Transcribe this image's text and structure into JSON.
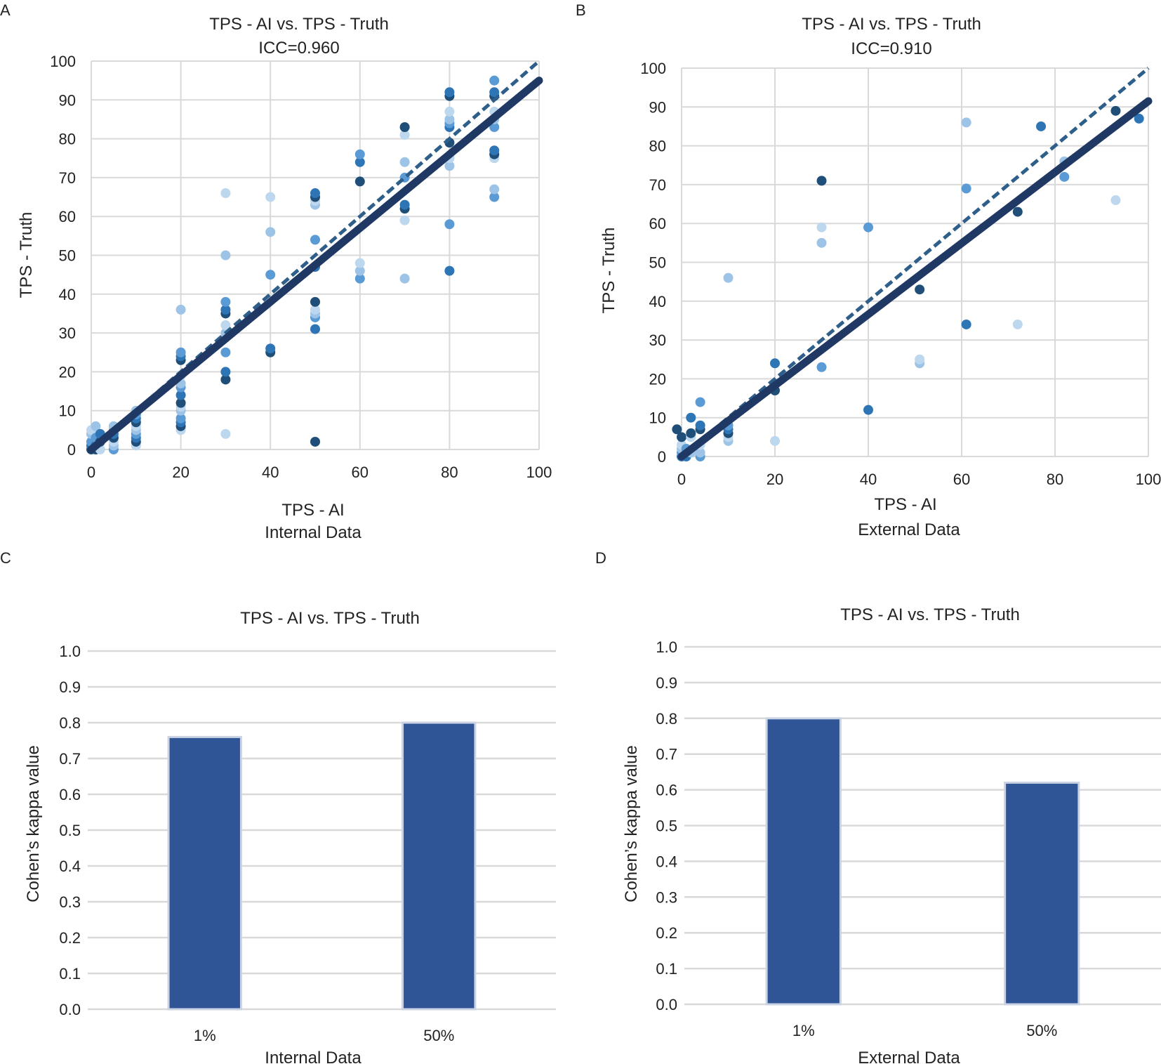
{
  "panel_labels": [
    "A",
    "B",
    "C",
    "D"
  ],
  "colors": {
    "grid": "#d9d9d9",
    "fit_line": "#1f3864",
    "identity_line": "#2e5f8a",
    "bar_fill": "#2f5597",
    "bar_outline": "#c9d3e3",
    "point_shades": [
      "#1f4e79",
      "#2e75b6",
      "#5b9bd5",
      "#9dc3e6",
      "#bdd7ee"
    ]
  },
  "chart_data": [
    {
      "panel": "A",
      "type": "scatter",
      "title": "TPS - AI vs. TPS - Truth",
      "subtitle": "ICC=0.960",
      "xlabel": "TPS - AI",
      "xlabel2": "Internal Data",
      "ylabel": "TPS - Truth",
      "xlim": [
        0,
        100
      ],
      "ylim": [
        0,
        100
      ],
      "xticks": [
        0,
        20,
        40,
        60,
        80,
        100
      ],
      "yticks": [
        0,
        10,
        20,
        30,
        40,
        50,
        60,
        70,
        80,
        90,
        100
      ],
      "grid": true,
      "fit_line": {
        "style": "solid",
        "points": [
          [
            0,
            0
          ],
          [
            100,
            95
          ]
        ]
      },
      "identity_line": {
        "style": "dashed",
        "points": [
          [
            0,
            0
          ],
          [
            100,
            100
          ]
        ]
      },
      "points": [
        [
          0,
          0
        ],
        [
          0,
          1
        ],
        [
          0,
          2
        ],
        [
          0,
          4
        ],
        [
          0,
          5
        ],
        [
          1,
          0
        ],
        [
          1,
          1
        ],
        [
          1,
          3
        ],
        [
          1,
          6
        ],
        [
          2,
          0
        ],
        [
          2,
          2
        ],
        [
          2,
          4
        ],
        [
          5,
          0
        ],
        [
          5,
          1
        ],
        [
          5,
          2
        ],
        [
          5,
          3
        ],
        [
          5,
          4
        ],
        [
          5,
          5
        ],
        [
          5,
          6
        ],
        [
          10,
          1
        ],
        [
          10,
          2
        ],
        [
          10,
          3
        ],
        [
          10,
          4
        ],
        [
          10,
          5
        ],
        [
          10,
          6
        ],
        [
          10,
          7
        ],
        [
          10,
          8
        ],
        [
          10,
          9
        ],
        [
          10,
          10
        ],
        [
          20,
          5
        ],
        [
          20,
          6
        ],
        [
          20,
          7
        ],
        [
          20,
          8
        ],
        [
          20,
          10
        ],
        [
          20,
          11
        ],
        [
          20,
          12
        ],
        [
          20,
          14
        ],
        [
          20,
          16
        ],
        [
          20,
          17
        ],
        [
          20,
          19
        ],
        [
          20,
          23
        ],
        [
          20,
          24
        ],
        [
          20,
          25
        ],
        [
          20,
          36
        ],
        [
          30,
          4
        ],
        [
          30,
          18
        ],
        [
          30,
          20
        ],
        [
          30,
          25
        ],
        [
          30,
          30
        ],
        [
          30,
          32
        ],
        [
          30,
          35
        ],
        [
          30,
          36
        ],
        [
          30,
          38
        ],
        [
          30,
          50
        ],
        [
          30,
          66
        ],
        [
          40,
          25
        ],
        [
          40,
          26
        ],
        [
          40,
          45
        ],
        [
          40,
          56
        ],
        [
          40,
          65
        ],
        [
          50,
          2
        ],
        [
          50,
          31
        ],
        [
          50,
          34
        ],
        [
          50,
          35
        ],
        [
          50,
          36
        ],
        [
          50,
          38
        ],
        [
          50,
          47
        ],
        [
          50,
          54
        ],
        [
          50,
          63
        ],
        [
          50,
          64
        ],
        [
          50,
          65
        ],
        [
          50,
          66
        ],
        [
          60,
          44
        ],
        [
          60,
          46
        ],
        [
          60,
          48
        ],
        [
          60,
          69
        ],
        [
          60,
          74
        ],
        [
          60,
          76
        ],
        [
          70,
          44
        ],
        [
          70,
          59
        ],
        [
          70,
          62
        ],
        [
          70,
          63
        ],
        [
          70,
          70
        ],
        [
          70,
          74
        ],
        [
          70,
          81
        ],
        [
          70,
          83
        ],
        [
          80,
          46
        ],
        [
          80,
          58
        ],
        [
          80,
          73
        ],
        [
          80,
          75
        ],
        [
          80,
          79
        ],
        [
          80,
          83
        ],
        [
          80,
          84
        ],
        [
          80,
          85
        ],
        [
          80,
          87
        ],
        [
          80,
          91
        ],
        [
          80,
          92
        ],
        [
          90,
          65
        ],
        [
          90,
          67
        ],
        [
          90,
          75
        ],
        [
          90,
          76
        ],
        [
          90,
          77
        ],
        [
          90,
          83
        ],
        [
          90,
          85
        ],
        [
          90,
          87
        ],
        [
          90,
          91
        ],
        [
          90,
          92
        ],
        [
          90,
          95
        ]
      ]
    },
    {
      "panel": "B",
      "type": "scatter",
      "title": "TPS - AI vs. TPS - Truth",
      "subtitle": "ICC=0.910",
      "xlabel": "TPS - AI",
      "xlabel2": "External Data",
      "ylabel": "TPS - Truth",
      "xlim": [
        0,
        100
      ],
      "ylim": [
        0,
        100
      ],
      "xticks": [
        0,
        20,
        40,
        60,
        80,
        100
      ],
      "yticks": [
        0,
        10,
        20,
        30,
        40,
        50,
        60,
        70,
        80,
        90,
        100
      ],
      "grid": true,
      "fit_line": {
        "style": "solid",
        "points": [
          [
            0,
            0
          ],
          [
            100,
            91.5
          ]
        ]
      },
      "identity_line": {
        "style": "dashed",
        "points": [
          [
            0,
            0
          ],
          [
            100,
            100
          ]
        ]
      },
      "points": [
        [
          -1,
          7
        ],
        [
          0,
          0
        ],
        [
          0,
          1
        ],
        [
          0,
          2
        ],
        [
          0,
          3
        ],
        [
          0,
          5
        ],
        [
          1,
          0
        ],
        [
          1,
          2
        ],
        [
          2,
          1
        ],
        [
          2,
          5
        ],
        [
          2,
          6
        ],
        [
          2,
          10
        ],
        [
          4,
          0
        ],
        [
          4,
          1
        ],
        [
          4,
          3
        ],
        [
          4,
          7
        ],
        [
          4,
          8
        ],
        [
          4,
          14
        ],
        [
          10,
          4
        ],
        [
          10,
          5
        ],
        [
          10,
          6
        ],
        [
          10,
          7
        ],
        [
          10,
          8
        ],
        [
          10,
          46
        ],
        [
          20,
          4
        ],
        [
          20,
          17
        ],
        [
          20,
          24
        ],
        [
          30,
          23
        ],
        [
          30,
          55
        ],
        [
          30,
          59
        ],
        [
          30,
          71
        ],
        [
          40,
          12
        ],
        [
          40,
          59
        ],
        [
          51,
          24
        ],
        [
          51,
          25
        ],
        [
          51,
          43
        ],
        [
          61,
          34
        ],
        [
          61,
          69
        ],
        [
          61,
          86
        ],
        [
          72,
          34
        ],
        [
          72,
          63
        ],
        [
          77,
          85
        ],
        [
          82,
          72
        ],
        [
          82,
          76
        ],
        [
          93,
          66
        ],
        [
          93,
          89
        ],
        [
          98,
          87
        ]
      ]
    },
    {
      "panel": "C",
      "type": "bar",
      "title": "TPS - AI vs. TPS - Truth",
      "xlabel": "Internal Data",
      "ylabel": "Cohen’s kappa value",
      "categories": [
        "1%",
        "50%"
      ],
      "values": [
        0.76,
        0.8
      ],
      "ylim": [
        0,
        1
      ],
      "yticks": [
        "0.0",
        "0.1",
        "0.2",
        "0.3",
        "0.4",
        "0.5",
        "0.6",
        "0.7",
        "0.8",
        "0.9",
        "1.0"
      ],
      "grid": true
    },
    {
      "panel": "D",
      "type": "bar",
      "title": "TPS - AI vs. TPS - Truth",
      "xlabel": "External Data",
      "ylabel": "Cohen’s kappa value",
      "categories": [
        "1%",
        "50%"
      ],
      "values": [
        0.8,
        0.62
      ],
      "ylim": [
        0,
        1
      ],
      "yticks": [
        "0.0",
        "0.1",
        "0.2",
        "0.3",
        "0.4",
        "0.5",
        "0.6",
        "0.7",
        "0.8",
        "0.9",
        "1.0"
      ],
      "grid": true
    }
  ]
}
